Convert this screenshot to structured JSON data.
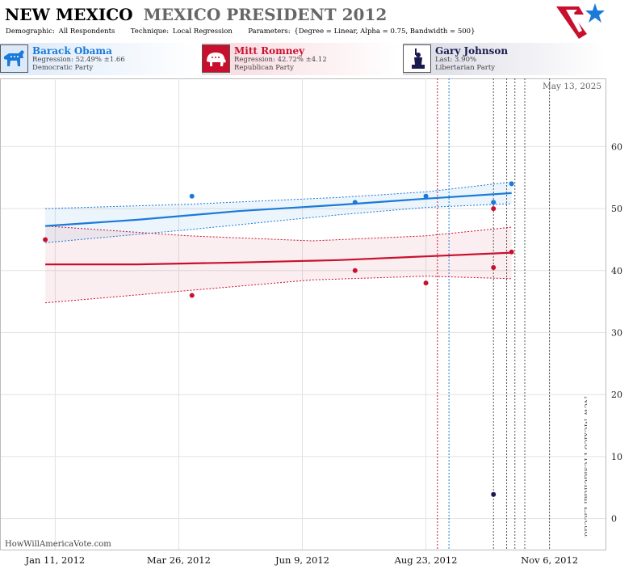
{
  "header": {
    "state": "NEW MEXICO",
    "race": "MEXICO PRESIDENT 2012",
    "demographic_label": "Demographic:",
    "demographic_value": "All Respondents",
    "technique_label": "Technique:",
    "technique_value": "Local Regression",
    "parameters_label": "Parameters:",
    "parameters_value": "{Degree = Linear, Alpha = 0.75, Bandwidth = 500}"
  },
  "candidates": [
    {
      "name": "Barack Obama",
      "stat": "Regression: 52.49% ±1.66",
      "party": "Democratic Party",
      "color": "#1a7ad9",
      "icon": "donkey-icon"
    },
    {
      "name": "Mitt Romney",
      "stat": "Regression: 42.72% ±4.12",
      "party": "Republican Party",
      "color": "#c8102e",
      "icon": "elephant-icon"
    },
    {
      "name": "Gary Johnson",
      "stat": "Last: 3.90%",
      "party": "Libertarian Party",
      "color": "#1a1a4e",
      "icon": "liberty-statue-icon"
    }
  ],
  "date_stamp": "May 13, 2025",
  "watermark": "HowWillAmericaVote.com",
  "election_label": "New Mexico Presidential Election",
  "chart_data": {
    "type": "scatter",
    "title": "MEXICO PRESIDENT 2012",
    "x_ticks": [
      "Jan 11, 2012",
      "Mar 26, 2012",
      "Jun 9, 2012",
      "Aug 23, 2012",
      "Nov 6, 2012"
    ],
    "x_range": [
      "2011-12-09",
      "2012-12-10"
    ],
    "y_ticks": [
      0,
      10,
      20,
      30,
      40,
      50,
      60
    ],
    "y_range": [
      -5,
      71
    ],
    "grid": true,
    "vertical_markers": [
      {
        "date": "2012-08-30",
        "color": "#c8102e"
      },
      {
        "date": "2012-09-06",
        "color": "#1a7ad9"
      },
      {
        "date": "2012-10-03",
        "color": "#555555"
      },
      {
        "date": "2012-10-11",
        "color": "#555555"
      },
      {
        "date": "2012-10-16",
        "color": "#555555"
      },
      {
        "date": "2012-10-22",
        "color": "#555555"
      },
      {
        "date": "2012-11-06",
        "color": "#555555"
      }
    ],
    "series": [
      {
        "name": "Barack Obama",
        "color": "#1a7ad9",
        "points": [
          [
            "2012-04-03",
            52
          ],
          [
            "2012-07-11",
            51
          ],
          [
            "2012-08-23",
            52
          ],
          [
            "2012-10-03",
            51
          ],
          [
            "2012-10-03",
            51
          ],
          [
            "2012-10-14",
            54
          ]
        ],
        "trend": [
          [
            "2012-01-05",
            47.2
          ],
          [
            "2012-03-01",
            48.2
          ],
          [
            "2012-05-01",
            49.6
          ],
          [
            "2012-07-01",
            50.6
          ],
          [
            "2012-08-23",
            51.6
          ],
          [
            "2012-10-14",
            52.5
          ]
        ],
        "band_upper": [
          [
            "2012-01-05",
            50.0
          ],
          [
            "2012-04-01",
            50.7
          ],
          [
            "2012-07-01",
            51.8
          ],
          [
            "2012-08-23",
            52.7
          ],
          [
            "2012-10-14",
            54.3
          ]
        ],
        "band_lower": [
          [
            "2012-01-05",
            44.5
          ],
          [
            "2012-04-01",
            46.6
          ],
          [
            "2012-07-01",
            49.0
          ],
          [
            "2012-08-23",
            50.2
          ],
          [
            "2012-10-14",
            50.8
          ]
        ]
      },
      {
        "name": "Mitt Romney",
        "color": "#c8102e",
        "points": [
          [
            "2012-01-05",
            45
          ],
          [
            "2012-04-03",
            36
          ],
          [
            "2012-07-11",
            40
          ],
          [
            "2012-08-23",
            38
          ],
          [
            "2012-10-03",
            50
          ],
          [
            "2012-10-03",
            40.5
          ],
          [
            "2012-10-14",
            43
          ]
        ],
        "trend": [
          [
            "2012-01-05",
            41.0
          ],
          [
            "2012-03-01",
            41.0
          ],
          [
            "2012-05-01",
            41.3
          ],
          [
            "2012-07-01",
            41.7
          ],
          [
            "2012-08-23",
            42.3
          ],
          [
            "2012-10-14",
            42.9
          ]
        ],
        "band_upper": [
          [
            "2012-01-05",
            47.2
          ],
          [
            "2012-04-01",
            45.6
          ],
          [
            "2012-06-15",
            44.8
          ],
          [
            "2012-08-23",
            45.6
          ],
          [
            "2012-10-14",
            47.0
          ]
        ],
        "band_lower": [
          [
            "2012-01-05",
            34.8
          ],
          [
            "2012-04-01",
            36.8
          ],
          [
            "2012-06-15",
            38.5
          ],
          [
            "2012-08-23",
            39.1
          ],
          [
            "2012-10-14",
            38.7
          ]
        ]
      },
      {
        "name": "Gary Johnson",
        "color": "#1a1a4e",
        "points": [
          [
            "2012-10-03",
            3.9
          ]
        ]
      }
    ]
  }
}
